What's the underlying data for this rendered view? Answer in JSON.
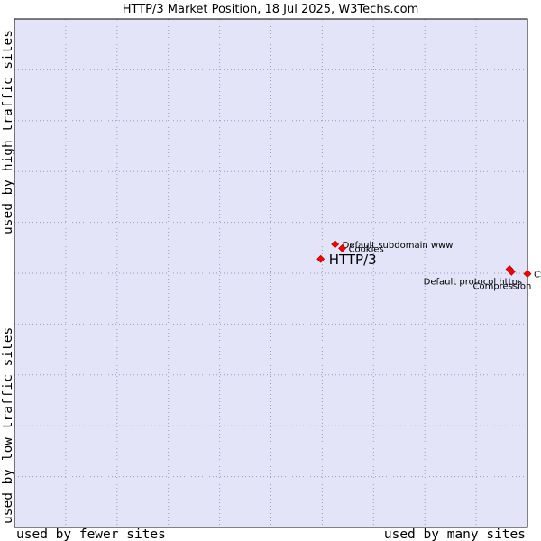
{
  "chart_data": {
    "type": "scatter",
    "title": "HTTP/3 Market Position, 18 Jul 2025, W3Techs.com",
    "xlabel_low": "used by fewer sites",
    "xlabel_high": "used by many sites",
    "ylabel_low": "used by low traffic sites",
    "ylabel_high": "used by high traffic sites",
    "xlim": [
      0,
      1
    ],
    "ylim": [
      0,
      1
    ],
    "grid": true,
    "colors": {
      "plot_background": "#e4e4f8",
      "grid": "#9a9ab2",
      "marker": "#ff0000",
      "marker_outline": "#a00000",
      "frame": "#000000"
    },
    "points": [
      {
        "label": "Default subdomain www",
        "x": 0.625,
        "y": 0.557,
        "highlight": false
      },
      {
        "label": "Cookies",
        "x": 0.639,
        "y": 0.549,
        "highlight": false
      },
      {
        "label": "HTTP/3",
        "x": 0.597,
        "y": 0.528,
        "highlight": true
      },
      {
        "label": "Default protocol https",
        "x": 0.965,
        "y": 0.508,
        "highlight": false
      },
      {
        "label": "Compression",
        "x": 0.969,
        "y": 0.503,
        "highlight": false
      },
      {
        "label": "CSS",
        "x": 1.0,
        "y": 0.499,
        "highlight": false
      }
    ]
  }
}
